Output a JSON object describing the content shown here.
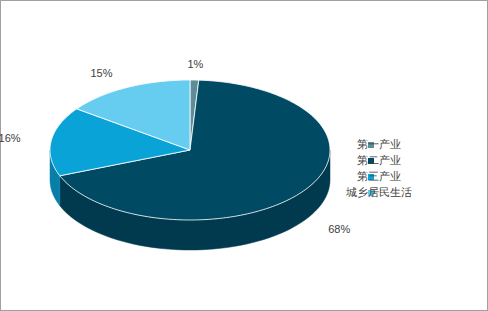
{
  "chart_data": {
    "type": "pie",
    "categories": [
      "第一产业",
      "第二产业",
      "第三产业",
      "城乡居民生活"
    ],
    "values": [
      1,
      68,
      16,
      15
    ],
    "value_labels": [
      "1%",
      "68%",
      "16%",
      "15%"
    ],
    "colors": [
      "#5f8d96",
      "#014a64",
      "#0aa3d8",
      "#66cdf0"
    ],
    "data_labels": true,
    "legend": "right"
  }
}
